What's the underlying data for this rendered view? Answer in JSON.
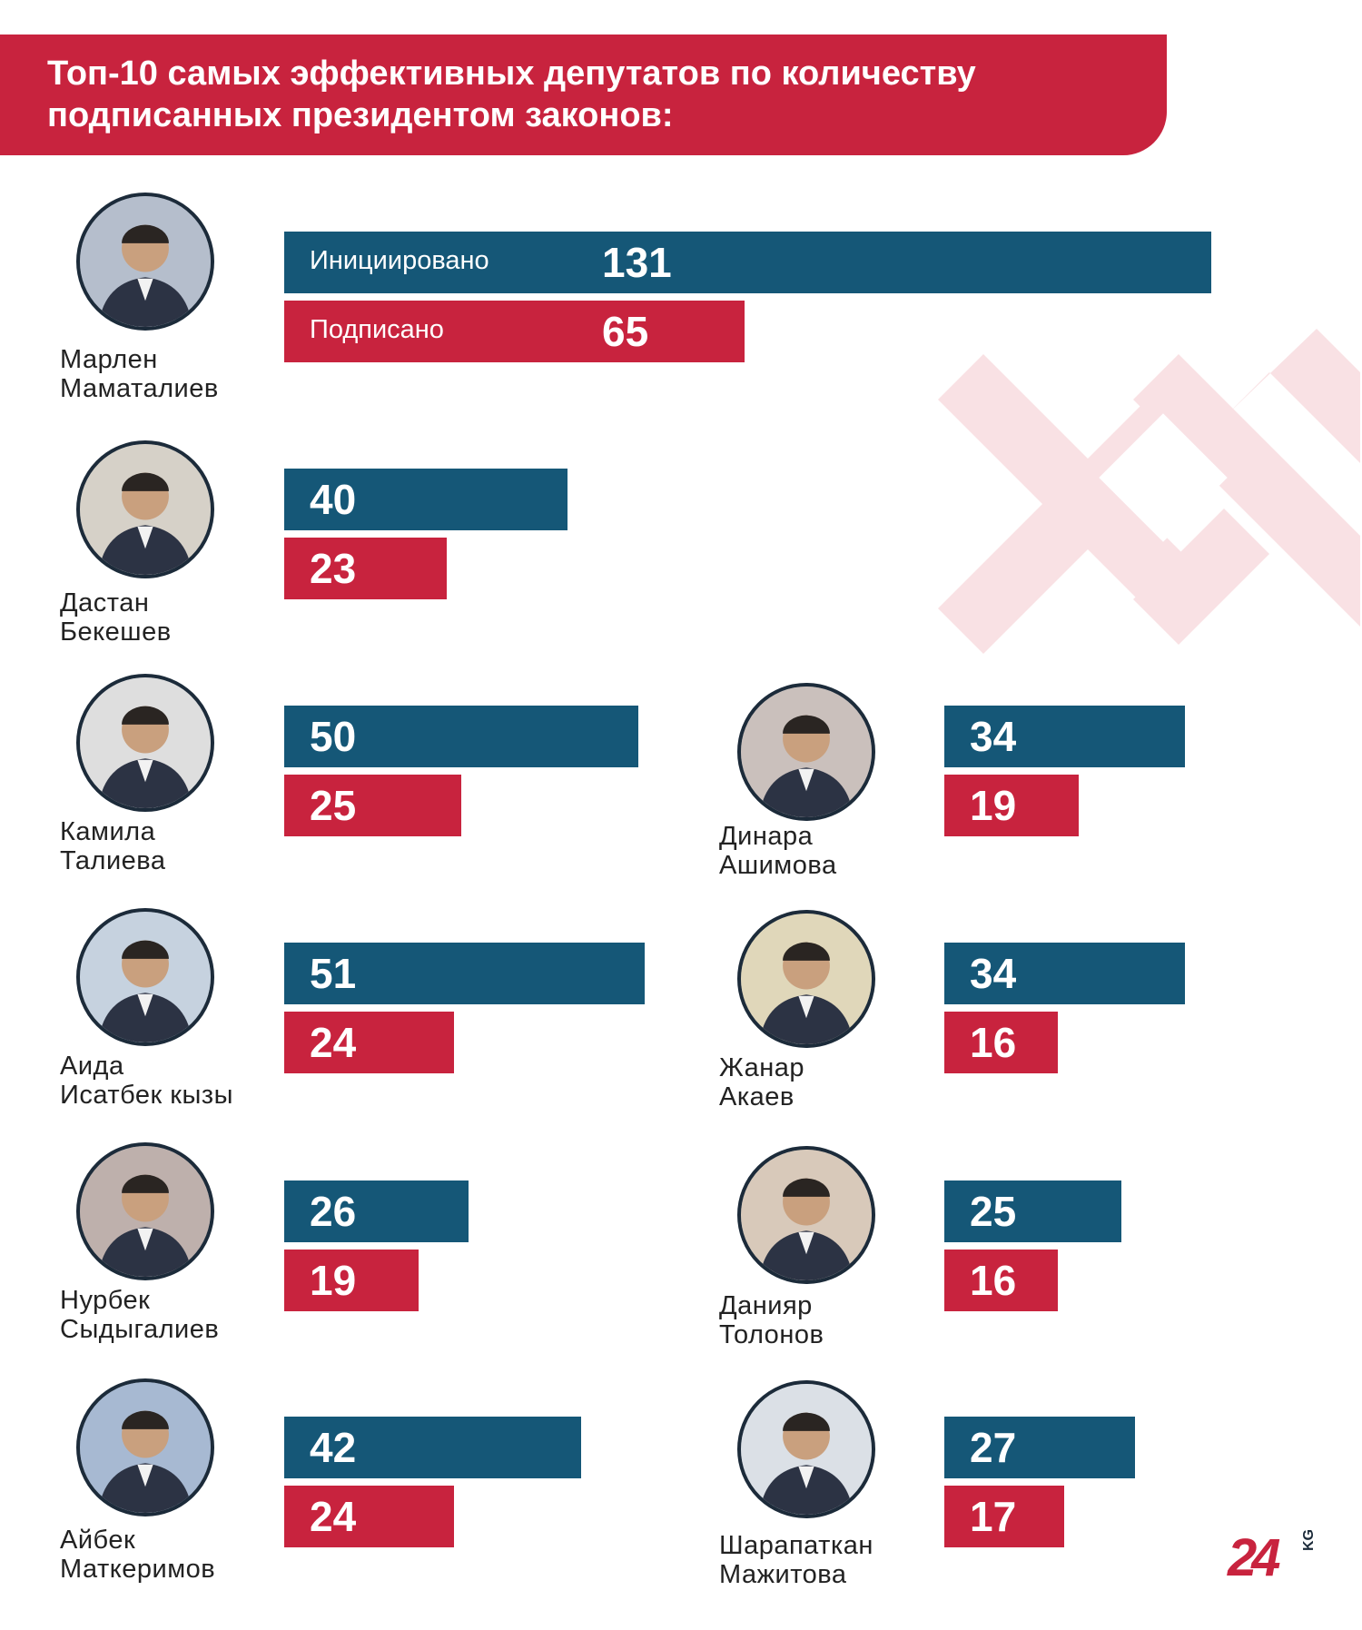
{
  "header": {
    "title_line1": "Топ-10 самых эффективных депутатов по количеству",
    "title_line2": "подписанных президентом законов:"
  },
  "legend": {
    "initiated": "Инициировано",
    "signed": "Подписано"
  },
  "colors": {
    "initiated": "#155777",
    "signed": "#c8233e",
    "header": "#c8233e"
  },
  "logo": {
    "number": "24",
    "suffix": "KG"
  },
  "chart_data": {
    "type": "bar",
    "series": [
      {
        "name": "Инициировано",
        "values": [
          131,
          40,
          50,
          51,
          26,
          42,
          34,
          34,
          25,
          27
        ]
      },
      {
        "name": "Подписано",
        "values": [
          65,
          23,
          25,
          24,
          19,
          24,
          19,
          16,
          16,
          17
        ]
      }
    ],
    "categories": [
      "Марлен Маматалиев",
      "Дастан Бекешев",
      "Камила Талиева",
      "Аида Исатбек кызы",
      "Нурбек Сыдыгалиев",
      "Айбек Маткеримов",
      "Динара Ашимова",
      "Жанар Акаев",
      "Данияр Толонов",
      "Шарапаткан Мажитова"
    ],
    "title": "Топ-10 самых эффективных депутатов по количеству подписанных президентом законов:",
    "xlabel": "",
    "ylabel": "",
    "orientation": "horizontal",
    "grid": false,
    "xlim": [
      0,
      131
    ]
  },
  "deputies": [
    {
      "first": "Марлен",
      "last": "Маматалиев",
      "initiated": 131,
      "signed": 65
    },
    {
      "first": "Дастан",
      "last": "Бекешев",
      "initiated": 40,
      "signed": 23
    },
    {
      "first": "Камила",
      "last": "Талиева",
      "initiated": 50,
      "signed": 25
    },
    {
      "first": "Аида",
      "last": "Исатбек кызы",
      "initiated": 51,
      "signed": 24
    },
    {
      "first": "Нурбек",
      "last": "Сыдыгалиев",
      "initiated": 26,
      "signed": 19
    },
    {
      "first": "Айбек",
      "last": "Маткеримов",
      "initiated": 42,
      "signed": 24
    },
    {
      "first": "Динара",
      "last": "Ашимова",
      "initiated": 34,
      "signed": 19
    },
    {
      "first": "Жанар",
      "last": "Акаев",
      "initiated": 34,
      "signed": 16
    },
    {
      "first": "Данияр",
      "last": "Толонов",
      "initiated": 25,
      "signed": 16
    },
    {
      "first": "Шарапаткан",
      "last": "Мажитова",
      "initiated": 27,
      "signed": 17
    }
  ]
}
